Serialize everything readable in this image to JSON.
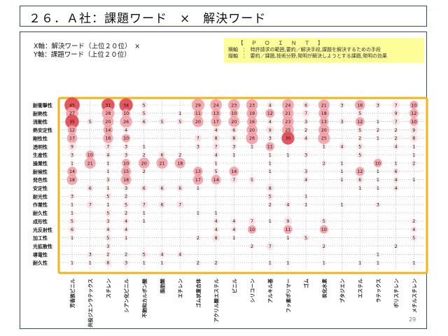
{
  "page": {
    "title": "２６．Ａ社：課題ワード　×　解決ワード",
    "x_axis_note": "X軸：解決ワード（上位２０位）　×",
    "y_axis_note": "Y軸：課題ワード（上位２０位）",
    "page_number": "29"
  },
  "point": {
    "title": "【　Ｐ　Ｏ　Ｉ　Ｎ　Ｔ　】",
    "line1": "横軸　：　特許請求の範囲,要約／解決手段,課題を解決するための手段",
    "line2": "縦軸　：　要約／課題,技術分野,発明が解決しようとする課題,発明の効果"
  },
  "colors": {
    "frame_border": "#f2b21a",
    "bubble_dark": "#e0454f",
    "bubble_mid": "#f3a0a5",
    "bubble_light": "#fbe0e2",
    "title_border": "#2e4a7a",
    "point_bg": "#fdfd9a"
  },
  "chart_data": {
    "type": "bubble-matrix",
    "x_categories": [
      "芳香族ビニル",
      "共役ジエンラテックス",
      "スチレン",
      "シアン化ビニル",
      "不飽和カルボン酸",
      "脂肪酸",
      "エチレン",
      "ゴム状重合体",
      "アクリル酸エステル",
      "ビニル",
      "シリコーン",
      "アルキル基",
      "フッ素ポリマー",
      "ゴム",
      "炭化水素",
      "ブタジエン",
      "エステル",
      "ラテックス",
      "ポリスチレン",
      "メチルスチレン"
    ],
    "y_categories": [
      "耐衝撃性",
      "耐熱性",
      "流動性",
      "熱安定性",
      "剛性性",
      "透明性",
      "生産性",
      "操業性",
      "耐候性",
      "発色性",
      "安定性",
      "耐光性",
      "作業性",
      "耐久性",
      "成形性",
      "光反射性",
      "加工性",
      "光拡散性",
      "導電性",
      "耐久性"
    ],
    "matrix": [
      [
        45,
        null,
        31,
        34,
        5,
        null,
        null,
        29,
        24,
        23,
        23,
        4,
        24,
        6,
        21,
        3,
        16,
        3,
        7,
        10
      ],
      [
        27,
        null,
        28,
        10,
        5,
        null,
        1,
        11,
        13,
        10,
        19,
        12,
        21,
        7,
        18,
        null,
        5,
        null,
        9,
        12
      ],
      [
        35,
        5,
        20,
        26,
        6,
        5,
        5,
        20,
        17,
        20,
        16,
        4,
        23,
        3,
        13,
        3,
        12,
        1,
        7,
        10
      ],
      [
        12,
        null,
        14,
        4,
        null,
        null,
        null,
        null,
        4,
        6,
        20,
        9,
        25,
        2,
        20,
        null,
        5,
        2,
        2,
        9
      ],
      [
        17,
        null,
        16,
        10,
        null,
        null,
        null,
        7,
        8,
        8,
        26,
        3,
        30,
        4,
        25,
        null,
        2,
        1,
        2,
        8
      ],
      [
        9,
        null,
        7,
        3,
        1,
        null,
        null,
        3,
        7,
        3,
        1,
        11,
        null,
        null,
        1,
        4,
        5,
        null,
        4,
        1
      ],
      [
        3,
        10,
        4,
        3,
        2,
        6,
        2,
        null,
        4,
        1,
        null,
        1,
        1,
        3,
        null,
        null,
        5,
        null,
        null,
        1
      ],
      [
        1,
        21,
        1,
        10,
        20,
        21,
        18,
        null,
        1,
        null,
        null,
        1,
        null,
        null,
        2,
        1,
        null,
        10,
        1,
        2
      ],
      [
        14,
        null,
        1,
        15,
        2,
        null,
        null,
        13,
        5,
        14,
        null,
        1,
        null,
        3,
        null,
        1,
        12,
        1,
        6,
        null
      ],
      [
        18,
        null,
        3,
        18,
        null,
        null,
        null,
        17,
        14,
        7,
        5,
        null,
        null,
        4,
        null,
        1,
        6,
        1,
        4,
        1
      ],
      [
        null,
        6,
        1,
        3,
        6,
        6,
        6,
        1,
        null,
        null,
        null,
        8,
        null,
        null,
        null,
        null,
        1,
        1,
        4,
        null
      ],
      [
        3,
        null,
        5,
        2,
        null,
        null,
        null,
        null,
        null,
        null,
        null,
        5,
        null,
        1,
        null,
        null,
        null,
        null,
        null,
        null
      ],
      [
        1,
        7,
        1,
        5,
        7,
        6,
        7,
        null,
        null,
        null,
        null,
        2,
        4,
        1,
        null,
        1,
        null,
        3,
        null,
        null
      ],
      [
        1,
        null,
        5,
        2,
        1,
        null,
        null,
        1,
        1,
        null,
        null,
        null,
        null,
        null,
        null,
        null,
        null,
        null,
        null,
        null
      ],
      [
        5,
        null,
        3,
        4,
        1,
        null,
        null,
        null,
        4,
        4,
        7,
        1,
        9,
        null,
        5,
        null,
        null,
        null,
        null,
        2
      ],
      [
        6,
        null,
        4,
        4,
        null,
        null,
        null,
        null,
        4,
        4,
        10,
        null,
        11,
        null,
        10,
        null,
        null,
        null,
        null,
        4
      ],
      [
        1,
        null,
        5,
        1,
        null,
        null,
        null,
        2,
        8,
        1,
        null,
        null,
        1,
        5,
        null,
        null,
        null,
        null,
        null,
        5
      ],
      [
        null,
        null,
        3,
        null,
        null,
        null,
        null,
        null,
        null,
        null,
        2,
        7,
        null,
        null,
        2,
        null,
        null,
        null,
        2,
        null
      ],
      [
        null,
        3,
        2,
        2,
        5,
        4,
        4,
        null,
        null,
        null,
        null,
        null,
        null,
        null,
        null,
        null,
        null,
        1,
        null,
        null
      ],
      [
        1,
        1,
        6,
        3,
        1,
        1,
        null,
        2,
        2,
        null,
        null,
        1,
        1,
        null,
        1,
        null,
        1,
        1,
        null,
        1
      ]
    ]
  }
}
